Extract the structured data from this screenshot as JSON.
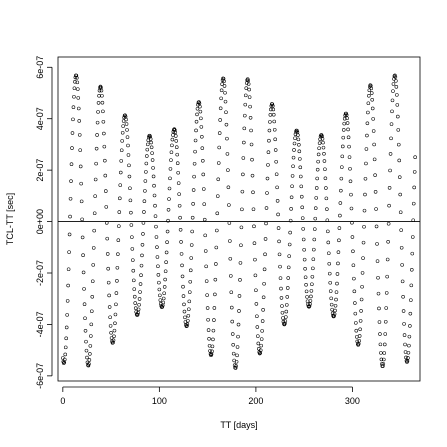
{
  "chart_data": {
    "type": "scatter",
    "xlabel": "TT [days]",
    "ylabel": "TCL-TT [sec]",
    "xlim": [
      -5,
      370
    ],
    "ylim": [
      -6.2e-07,
      6.4e-07
    ],
    "x_ticks": [
      0,
      100,
      200,
      300
    ],
    "x_tick_labels": [
      "0",
      "100",
      "200",
      "300"
    ],
    "y_ticks": [
      -6e-07,
      -4e-07,
      -2e-07,
      0,
      2e-07,
      4e-07,
      6e-07
    ],
    "y_tick_labels": [
      "-6e-07",
      "-4e-07",
      "-2e-07",
      "0e+00",
      "2e-07",
      "4e-07",
      "6e-07"
    ],
    "reference_line_y": 0,
    "marker": "open-circle",
    "grid": false,
    "legend": "none",
    "x_sampling_step": 0.5,
    "x_range": [
      0,
      365
    ],
    "oscillation_period_days": 25.4,
    "envelope": {
      "min_amplitude": 3.3e-07,
      "max_amplitude": 5.7e-07,
      "period_days": 162,
      "peak_at_day": 178
    },
    "series": [
      {
        "points_sampled_every_days": 0.5,
        "values_at_days": {
          "0": -4.1e-07,
          "16": 4.9e-07,
          "28": -5.7e-07,
          "41": 4.1e-07,
          "53": -4.8e-07,
          "66": 3.6e-07,
          "79": -3.6e-07,
          "92": 4e-07,
          "104": -3.9e-07,
          "117": 4.8e-07,
          "129": -4.5e-07,
          "142": 5.4e-07,
          "155": -5.2e-07,
          "168": 5.7e-07,
          "180": -5.5e-07,
          "193": 5.5e-07,
          "206": -5.3e-07,
          "218": 4.8e-07,
          "231": -5.6e-07,
          "244": 3.9e-07,
          "257": -4.9e-07,
          "269": 3.9e-07,
          "282": -4.2e-07,
          "295": 3.3e-07,
          "307": -3.8e-07,
          "320": 4.6e-07,
          "333": -4.3e-07,
          "346": 5.5e-07,
          "358": -5e-07,
          "365": 4.3e-07
        }
      }
    ]
  }
}
